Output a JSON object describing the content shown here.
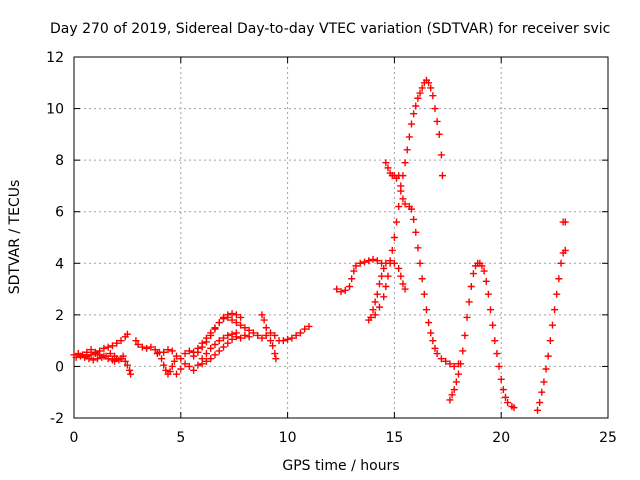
{
  "chart_data": {
    "type": "scatter",
    "title": "Day 270 of 2019, Sidereal Day-to-day VTEC variation (SDTVAR) for receiver svic",
    "xlabel": "GPS time / hours",
    "ylabel": "SDTVAR / TECUs",
    "xlim": [
      0,
      25
    ],
    "ylim": [
      -2,
      12
    ],
    "xticks": [
      0,
      5,
      10,
      15,
      20,
      25
    ],
    "yticks": [
      -2,
      0,
      2,
      4,
      6,
      8,
      10,
      12
    ],
    "grid": true,
    "marker": "plus",
    "color": "#ff0000",
    "series": [
      {
        "points": [
          [
            0.0,
            0.45
          ],
          [
            0.2,
            0.5
          ],
          [
            0.4,
            0.45
          ],
          [
            0.6,
            0.55
          ],
          [
            0.8,
            0.65
          ],
          [
            1.0,
            0.55
          ],
          [
            1.2,
            0.6
          ],
          [
            1.4,
            0.7
          ],
          [
            1.6,
            0.75
          ],
          [
            1.8,
            0.8
          ],
          [
            2.0,
            0.9
          ],
          [
            2.2,
            1.0
          ],
          [
            2.4,
            1.15
          ],
          [
            2.5,
            1.25
          ],
          [
            0.1,
            0.35
          ],
          [
            0.3,
            0.4
          ],
          [
            0.5,
            0.35
          ],
          [
            0.7,
            0.3
          ],
          [
            0.9,
            0.25
          ],
          [
            1.1,
            0.3
          ],
          [
            1.3,
            0.35
          ],
          [
            1.5,
            0.4
          ],
          [
            1.7,
            0.5
          ],
          [
            1.9,
            0.4
          ],
          [
            2.0,
            0.3
          ],
          [
            2.1,
            0.25
          ],
          [
            2.2,
            0.3
          ],
          [
            2.3,
            0.4
          ],
          [
            2.4,
            0.2
          ],
          [
            2.5,
            0.05
          ],
          [
            2.6,
            -0.15
          ],
          [
            2.65,
            -0.3
          ],
          [
            0.6,
            0.4
          ],
          [
            0.8,
            0.45
          ],
          [
            1.0,
            0.5
          ],
          [
            1.2,
            0.45
          ],
          [
            1.4,
            0.4
          ],
          [
            1.6,
            0.3
          ],
          [
            1.8,
            0.25
          ],
          [
            1.9,
            0.2
          ],
          [
            2.9,
            1.0
          ],
          [
            3.0,
            0.85
          ],
          [
            3.2,
            0.75
          ],
          [
            3.4,
            0.7
          ],
          [
            3.6,
            0.75
          ],
          [
            3.8,
            0.65
          ],
          [
            4.0,
            0.55
          ],
          [
            4.1,
            0.3
          ],
          [
            4.2,
            0.05
          ],
          [
            4.3,
            -0.15
          ],
          [
            4.4,
            -0.3
          ],
          [
            4.5,
            -0.2
          ],
          [
            4.6,
            0.0
          ],
          [
            4.7,
            0.2
          ],
          [
            3.9,
            0.5
          ],
          [
            4.2,
            0.55
          ],
          [
            4.4,
            0.65
          ],
          [
            4.6,
            0.6
          ],
          [
            4.8,
            0.4
          ],
          [
            5.0,
            0.3
          ],
          [
            5.2,
            0.5
          ],
          [
            5.4,
            0.6
          ],
          [
            5.6,
            0.55
          ],
          [
            5.8,
            0.7
          ],
          [
            6.0,
            0.9
          ],
          [
            6.2,
            1.1
          ],
          [
            6.4,
            1.3
          ],
          [
            6.6,
            1.5
          ],
          [
            6.8,
            1.7
          ],
          [
            7.0,
            1.9
          ],
          [
            7.2,
            2.0
          ],
          [
            7.4,
            2.05
          ],
          [
            7.6,
            2.0
          ],
          [
            7.8,
            1.9
          ],
          [
            4.8,
            -0.3
          ],
          [
            5.0,
            -0.1
          ],
          [
            5.2,
            0.1
          ],
          [
            5.4,
            0.0
          ],
          [
            5.6,
            -0.15
          ],
          [
            5.8,
            0.05
          ],
          [
            6.0,
            0.3
          ],
          [
            6.2,
            0.5
          ],
          [
            6.4,
            0.7
          ],
          [
            6.6,
            0.85
          ],
          [
            6.8,
            1.0
          ],
          [
            7.0,
            1.1
          ],
          [
            7.2,
            1.2
          ],
          [
            7.4,
            1.25
          ],
          [
            7.6,
            1.3
          ],
          [
            5.6,
            0.4
          ],
          [
            5.8,
            0.55
          ],
          [
            6.0,
            0.75
          ],
          [
            6.2,
            0.95
          ],
          [
            6.4,
            1.2
          ],
          [
            6.6,
            1.45
          ],
          [
            6.8,
            1.7
          ],
          [
            7.0,
            1.85
          ],
          [
            7.2,
            1.9
          ],
          [
            7.4,
            1.8
          ],
          [
            7.6,
            1.7
          ],
          [
            7.8,
            1.6
          ],
          [
            8.0,
            1.5
          ],
          [
            8.2,
            1.4
          ],
          [
            6.0,
            0.1
          ],
          [
            6.2,
            0.2
          ],
          [
            6.4,
            0.3
          ],
          [
            6.6,
            0.45
          ],
          [
            6.8,
            0.6
          ],
          [
            7.0,
            0.75
          ],
          [
            7.2,
            0.9
          ],
          [
            7.4,
            1.05
          ],
          [
            7.6,
            1.15
          ],
          [
            7.8,
            1.1
          ],
          [
            8.0,
            1.2
          ],
          [
            8.2,
            1.15
          ],
          [
            8.4,
            1.3
          ],
          [
            8.6,
            1.2
          ],
          [
            8.8,
            1.1
          ],
          [
            9.0,
            1.2
          ],
          [
            9.2,
            1.0
          ],
          [
            9.3,
            0.8
          ],
          [
            9.4,
            0.5
          ],
          [
            9.45,
            0.3
          ],
          [
            8.8,
            2.0
          ],
          [
            8.9,
            1.8
          ],
          [
            9.0,
            1.5
          ],
          [
            9.2,
            1.3
          ],
          [
            9.4,
            1.2
          ],
          [
            9.6,
            1.0
          ],
          [
            9.8,
            1.0
          ],
          [
            10.0,
            1.05
          ],
          [
            10.2,
            1.1
          ],
          [
            10.4,
            1.2
          ],
          [
            10.6,
            1.3
          ],
          [
            10.8,
            1.45
          ],
          [
            11.0,
            1.55
          ]
        ]
      },
      {
        "points": [
          [
            12.3,
            3.0
          ],
          [
            12.5,
            2.9
          ],
          [
            12.7,
            2.95
          ],
          [
            12.9,
            3.1
          ],
          [
            13.0,
            3.4
          ],
          [
            13.1,
            3.7
          ],
          [
            13.2,
            3.9
          ],
          [
            13.4,
            4.0
          ],
          [
            13.6,
            4.05
          ],
          [
            13.8,
            4.1
          ],
          [
            14.0,
            4.15
          ],
          [
            14.2,
            4.1
          ],
          [
            14.4,
            4.0
          ],
          [
            13.8,
            1.8
          ],
          [
            13.9,
            1.9
          ],
          [
            14.0,
            2.2
          ],
          [
            14.1,
            2.5
          ],
          [
            14.2,
            2.8
          ],
          [
            14.3,
            3.2
          ],
          [
            14.4,
            3.5
          ],
          [
            14.5,
            3.8
          ],
          [
            14.6,
            4.0
          ],
          [
            14.8,
            4.1
          ],
          [
            15.0,
            4.0
          ],
          [
            15.2,
            3.8
          ],
          [
            15.3,
            3.5
          ],
          [
            15.4,
            3.2
          ],
          [
            15.5,
            3.0
          ],
          [
            14.1,
            2.0
          ],
          [
            14.3,
            2.3
          ],
          [
            14.5,
            2.7
          ],
          [
            14.6,
            3.1
          ],
          [
            14.7,
            3.5
          ],
          [
            14.8,
            4.0
          ],
          [
            14.9,
            4.5
          ],
          [
            15.0,
            5.0
          ],
          [
            15.1,
            5.6
          ],
          [
            15.2,
            6.2
          ],
          [
            15.3,
            6.8
          ],
          [
            15.4,
            7.4
          ],
          [
            15.5,
            7.9
          ],
          [
            15.6,
            8.4
          ],
          [
            15.7,
            8.9
          ],
          [
            15.8,
            9.4
          ],
          [
            15.9,
            9.8
          ],
          [
            16.0,
            10.1
          ],
          [
            16.1,
            10.4
          ],
          [
            16.2,
            10.6
          ],
          [
            16.3,
            10.8
          ],
          [
            16.4,
            11.0
          ],
          [
            16.5,
            11.1
          ],
          [
            16.6,
            11.0
          ],
          [
            16.7,
            10.8
          ],
          [
            16.8,
            10.5
          ],
          [
            16.9,
            10.0
          ],
          [
            17.0,
            9.5
          ],
          [
            17.1,
            9.0
          ],
          [
            17.2,
            8.2
          ],
          [
            17.25,
            7.4
          ],
          [
            14.6,
            7.9
          ],
          [
            14.7,
            7.7
          ],
          [
            14.8,
            7.5
          ],
          [
            14.9,
            7.4
          ],
          [
            15.0,
            7.4
          ],
          [
            15.1,
            7.3
          ],
          [
            15.2,
            7.4
          ],
          [
            15.3,
            7.0
          ],
          [
            15.4,
            6.5
          ],
          [
            15.5,
            6.3
          ],
          [
            15.7,
            6.2
          ],
          [
            15.8,
            6.1
          ],
          [
            15.9,
            5.7
          ],
          [
            16.0,
            5.2
          ],
          [
            16.1,
            4.6
          ],
          [
            16.2,
            4.0
          ],
          [
            16.3,
            3.4
          ],
          [
            16.4,
            2.8
          ],
          [
            16.5,
            2.2
          ],
          [
            16.6,
            1.7
          ],
          [
            16.7,
            1.3
          ],
          [
            16.8,
            1.0
          ],
          [
            16.9,
            0.7
          ],
          [
            17.0,
            0.5
          ],
          [
            17.2,
            0.3
          ],
          [
            17.4,
            0.2
          ],
          [
            17.6,
            0.1
          ],
          [
            17.8,
            0.0
          ],
          [
            18.0,
            0.1
          ],
          [
            17.6,
            -1.3
          ],
          [
            17.7,
            -1.1
          ],
          [
            17.8,
            -0.9
          ],
          [
            17.9,
            -0.6
          ],
          [
            18.0,
            -0.3
          ],
          [
            18.1,
            0.1
          ],
          [
            18.2,
            0.6
          ],
          [
            18.3,
            1.2
          ],
          [
            18.4,
            1.9
          ],
          [
            18.5,
            2.5
          ],
          [
            18.6,
            3.1
          ],
          [
            18.7,
            3.6
          ],
          [
            18.8,
            3.9
          ],
          [
            18.9,
            4.0
          ],
          [
            19.0,
            4.0
          ],
          [
            19.1,
            3.9
          ],
          [
            19.2,
            3.7
          ],
          [
            19.3,
            3.3
          ],
          [
            19.4,
            2.8
          ],
          [
            19.5,
            2.2
          ],
          [
            19.6,
            1.6
          ],
          [
            19.7,
            1.0
          ],
          [
            19.8,
            0.5
          ],
          [
            19.9,
            0.0
          ],
          [
            20.0,
            -0.5
          ],
          [
            20.1,
            -0.9
          ],
          [
            20.2,
            -1.2
          ],
          [
            20.3,
            -1.4
          ],
          [
            20.5,
            -1.55
          ],
          [
            20.6,
            -1.6
          ],
          [
            21.7,
            -1.7
          ],
          [
            21.8,
            -1.4
          ],
          [
            21.9,
            -1.0
          ],
          [
            22.0,
            -0.6
          ],
          [
            22.1,
            -0.1
          ],
          [
            22.2,
            0.4
          ],
          [
            22.3,
            1.0
          ],
          [
            22.4,
            1.6
          ],
          [
            22.5,
            2.2
          ],
          [
            22.6,
            2.8
          ],
          [
            22.7,
            3.4
          ],
          [
            22.8,
            4.0
          ],
          [
            22.9,
            4.4
          ],
          [
            23.0,
            4.5
          ],
          [
            22.9,
            5.6
          ],
          [
            23.0,
            5.6
          ]
        ]
      }
    ]
  }
}
